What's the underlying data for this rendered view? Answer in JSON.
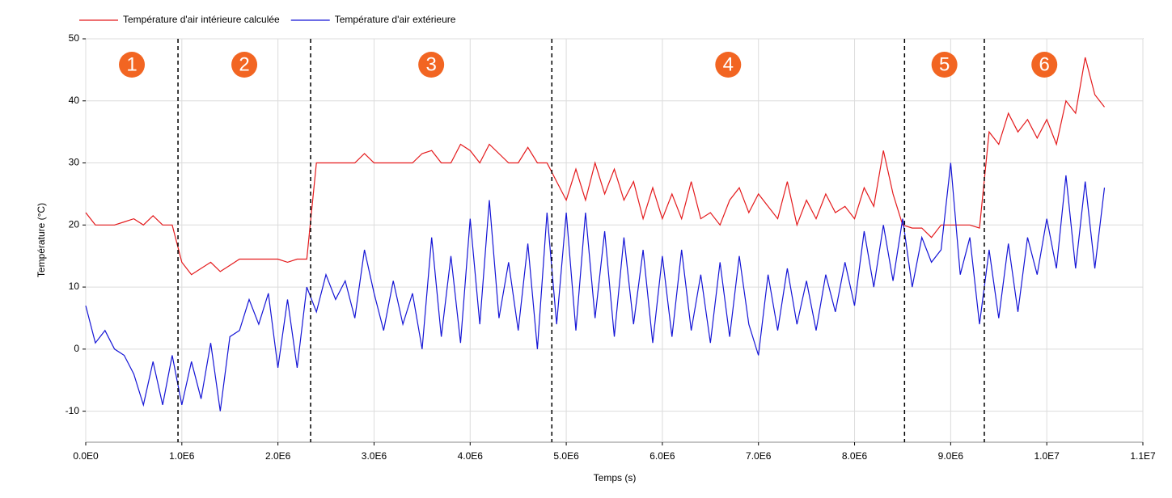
{
  "chart_data": {
    "type": "line",
    "ylabel": "Température (°C)",
    "xlabel": "Temps (s)",
    "xlim": [
      0,
      11000000
    ],
    "ylim": [
      -15,
      50
    ],
    "xticks": [
      {
        "value": 0,
        "label": "0.0E0"
      },
      {
        "value": 1000000,
        "label": "1.0E6"
      },
      {
        "value": 2000000,
        "label": "2.0E6"
      },
      {
        "value": 3000000,
        "label": "3.0E6"
      },
      {
        "value": 4000000,
        "label": "4.0E6"
      },
      {
        "value": 5000000,
        "label": "5.0E6"
      },
      {
        "value": 6000000,
        "label": "6.0E6"
      },
      {
        "value": 7000000,
        "label": "7.0E6"
      },
      {
        "value": 8000000,
        "label": "8.0E6"
      },
      {
        "value": 9000000,
        "label": "9.0E6"
      },
      {
        "value": 10000000,
        "label": "1.0E7"
      },
      {
        "value": 11000000,
        "label": "1.1E7"
      }
    ],
    "yticks": [
      -10,
      0,
      10,
      20,
      30,
      40,
      50
    ],
    "grid": true,
    "legend": "top-left",
    "phase_boundaries": [
      960000,
      2340000,
      4850000,
      8520000,
      9350000
    ],
    "phase_labels": [
      "1",
      "2",
      "3",
      "4",
      "5",
      "6"
    ],
    "phase_color": "#f26522",
    "x": [
      0,
      100000,
      200000,
      300000,
      400000,
      500000,
      600000,
      700000,
      800000,
      900000,
      1000000,
      1100000,
      1200000,
      1300000,
      1400000,
      1500000,
      1600000,
      1700000,
      1800000,
      1900000,
      2000000,
      2100000,
      2200000,
      2300000,
      2400000,
      2500000,
      2600000,
      2700000,
      2800000,
      2900000,
      3000000,
      3100000,
      3200000,
      3300000,
      3400000,
      3500000,
      3600000,
      3700000,
      3800000,
      3900000,
      4000000,
      4100000,
      4200000,
      4300000,
      4400000,
      4500000,
      4600000,
      4700000,
      4800000,
      4900000,
      5000000,
      5100000,
      5200000,
      5300000,
      5400000,
      5500000,
      5600000,
      5700000,
      5800000,
      5900000,
      6000000,
      6100000,
      6200000,
      6300000,
      6400000,
      6500000,
      6600000,
      6700000,
      6800000,
      6900000,
      7000000,
      7100000,
      7200000,
      7300000,
      7400000,
      7500000,
      7600000,
      7700000,
      7800000,
      7900000,
      8000000,
      8100000,
      8200000,
      8300000,
      8400000,
      8500000,
      8600000,
      8700000,
      8800000,
      8900000,
      9000000,
      9100000,
      9200000,
      9300000,
      9400000,
      9500000,
      9600000,
      9700000,
      9800000,
      9900000,
      10000000,
      10100000,
      10200000,
      10300000,
      10400000,
      10500000,
      10600000
    ],
    "series": [
      {
        "name": "Température d'air intérieure calculée",
        "color": "#e41a1c",
        "values": [
          22,
          20,
          20,
          20,
          20.5,
          21,
          20,
          21.5,
          20,
          20,
          14,
          12,
          13,
          14,
          12.5,
          13.5,
          14.5,
          14.5,
          14.5,
          14.5,
          14.5,
          14,
          14.5,
          14.5,
          30,
          30,
          30,
          30,
          30,
          31.5,
          30,
          30,
          30,
          30,
          30,
          31.5,
          32,
          30,
          30,
          33,
          32,
          30,
          33,
          31.5,
          30,
          30,
          32.5,
          30,
          30,
          27,
          24,
          29,
          24,
          30,
          25,
          29,
          24,
          27,
          21,
          26,
          21,
          25,
          21,
          27,
          21,
          22,
          20,
          24,
          26,
          22,
          25,
          23,
          21,
          27,
          20,
          24,
          21,
          25,
          22,
          23,
          21,
          26,
          23,
          32,
          25,
          20,
          19.5,
          19.5,
          18,
          20,
          20,
          20,
          20,
          19.5,
          35,
          33,
          38,
          35,
          37,
          34,
          37,
          33,
          40,
          38,
          47,
          41,
          39
        ]
      },
      {
        "name": "Température d'air extérieure",
        "color": "#1515d6",
        "values": [
          7,
          1,
          3,
          0,
          -1,
          -4,
          -9,
          -2,
          -9,
          -1,
          -9,
          -2,
          -8,
          1,
          -10,
          2,
          3,
          8,
          4,
          9,
          -3,
          8,
          -3,
          10,
          6,
          12,
          8,
          11,
          5,
          16,
          9,
          3,
          11,
          4,
          9,
          0,
          18,
          2,
          15,
          1,
          21,
          4,
          24,
          5,
          14,
          3,
          17,
          0,
          22,
          4,
          22,
          3,
          22,
          5,
          19,
          2,
          18,
          4,
          16,
          1,
          15,
          2,
          16,
          3,
          12,
          1,
          14,
          2,
          15,
          4,
          -1,
          12,
          3,
          13,
          4,
          11,
          3,
          12,
          6,
          14,
          7,
          19,
          10,
          20,
          11,
          21,
          10,
          18,
          14,
          16,
          30,
          12,
          18,
          4,
          16,
          5,
          17,
          6,
          18,
          12,
          21,
          13,
          28,
          13,
          27,
          13,
          26
        ]
      }
    ]
  }
}
